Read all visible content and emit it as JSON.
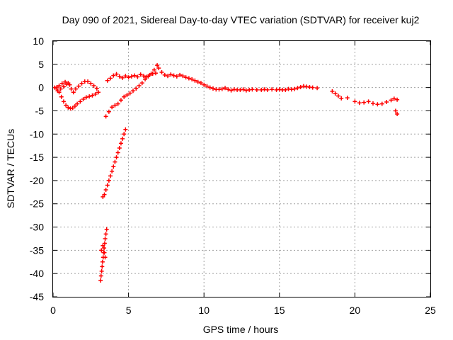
{
  "chart_data": {
    "type": "scatter",
    "title": "Day 090 of 2021, Sidereal Day-to-day VTEC variation (SDTVAR) for receiver kuj2",
    "xlabel": "GPS time / hours",
    "ylabel": "SDTVAR / TECUs",
    "xlim": [
      0,
      25
    ],
    "ylim": [
      -45,
      10
    ],
    "xticks": [
      0,
      5,
      10,
      15,
      20,
      25
    ],
    "yticks": [
      10,
      5,
      0,
      -5,
      -10,
      -15,
      -20,
      -25,
      -30,
      -35,
      -40,
      -45
    ],
    "grid": true,
    "marker": "plus",
    "color": "#ff0000",
    "series": [
      {
        "name": "loop",
        "points": [
          [
            0.1,
            0.0
          ],
          [
            0.25,
            -0.3
          ],
          [
            0.4,
            -1.0
          ],
          [
            0.55,
            -2.0
          ],
          [
            0.7,
            -3.0
          ],
          [
            0.85,
            -3.8
          ],
          [
            1.0,
            -4.3
          ],
          [
            1.15,
            -4.5
          ],
          [
            1.3,
            -4.4
          ],
          [
            1.45,
            -4.0
          ],
          [
            1.6,
            -3.5
          ],
          [
            1.8,
            -3.0
          ],
          [
            2.0,
            -2.5
          ],
          [
            2.2,
            -2.1
          ],
          [
            2.4,
            -1.9
          ],
          [
            2.6,
            -1.7
          ],
          [
            2.8,
            -1.4
          ],
          [
            3.0,
            -1.0
          ],
          [
            2.9,
            -0.2
          ],
          [
            2.7,
            0.4
          ],
          [
            2.5,
            0.9
          ],
          [
            2.3,
            1.3
          ],
          [
            2.1,
            1.3
          ],
          [
            1.9,
            0.9
          ],
          [
            1.7,
            0.3
          ],
          [
            1.5,
            -0.3
          ],
          [
            1.35,
            -1.0
          ],
          [
            1.2,
            -0.3
          ],
          [
            1.1,
            0.6
          ],
          [
            1.0,
            1.0
          ],
          [
            0.8,
            1.2
          ],
          [
            0.6,
            0.9
          ],
          [
            0.4,
            0.4
          ],
          [
            0.25,
            0.1
          ],
          [
            0.3,
            -0.7
          ],
          [
            0.5,
            -0.3
          ],
          [
            0.7,
            0.2
          ],
          [
            0.9,
            0.7
          ]
        ]
      },
      {
        "name": "descending-1",
        "points": [
          [
            3.55,
            -30.5
          ],
          [
            3.5,
            -31.5
          ],
          [
            3.45,
            -32.5
          ],
          [
            3.42,
            -33.5
          ],
          [
            3.38,
            -34.5
          ],
          [
            3.35,
            -35.5
          ],
          [
            3.32,
            -36.5
          ],
          [
            3.28,
            -37.5
          ],
          [
            3.25,
            -38.5
          ],
          [
            3.22,
            -39.5
          ],
          [
            3.18,
            -40.5
          ],
          [
            3.15,
            -41.5
          ],
          [
            3.2,
            -35.0
          ],
          [
            3.3,
            -34.0
          ],
          [
            3.4,
            -35.5
          ],
          [
            3.45,
            -36.5
          ]
        ]
      },
      {
        "name": "descending-2",
        "points": [
          [
            4.8,
            -9.0
          ],
          [
            4.7,
            -10.0
          ],
          [
            4.6,
            -11.0
          ],
          [
            4.5,
            -12.0
          ],
          [
            4.4,
            -13.0
          ],
          [
            4.3,
            -14.0
          ],
          [
            4.2,
            -15.0
          ],
          [
            4.1,
            -16.0
          ],
          [
            4.0,
            -17.0
          ],
          [
            3.9,
            -18.0
          ],
          [
            3.8,
            -19.0
          ],
          [
            3.7,
            -20.0
          ],
          [
            3.6,
            -21.0
          ],
          [
            3.5,
            -22.0
          ],
          [
            3.4,
            -23.0
          ],
          [
            3.3,
            -23.5
          ]
        ]
      },
      {
        "name": "rise",
        "points": [
          [
            3.5,
            -6.2
          ],
          [
            3.7,
            -5.2
          ],
          [
            3.9,
            -4.2
          ],
          [
            4.1,
            -3.8
          ],
          [
            4.3,
            -3.5
          ],
          [
            4.5,
            -2.7
          ],
          [
            4.7,
            -2.0
          ],
          [
            4.9,
            -1.6
          ],
          [
            5.1,
            -1.2
          ],
          [
            5.3,
            -0.7
          ],
          [
            5.5,
            -0.2
          ],
          [
            5.7,
            0.4
          ],
          [
            5.9,
            1.0
          ],
          [
            6.1,
            1.8
          ],
          [
            6.3,
            2.4
          ],
          [
            6.5,
            3.0
          ],
          [
            6.7,
            3.8
          ],
          [
            6.9,
            4.8
          ],
          [
            7.0,
            4.2
          ]
        ]
      },
      {
        "name": "main",
        "points": [
          [
            3.6,
            1.5
          ],
          [
            3.8,
            2.0
          ],
          [
            4.0,
            2.6
          ],
          [
            4.2,
            2.9
          ],
          [
            4.4,
            2.4
          ],
          [
            4.6,
            2.1
          ],
          [
            4.8,
            2.5
          ],
          [
            5.0,
            2.2
          ],
          [
            5.2,
            2.4
          ],
          [
            5.4,
            2.6
          ],
          [
            5.6,
            2.3
          ],
          [
            5.8,
            2.8
          ],
          [
            6.0,
            2.5
          ],
          [
            6.2,
            2.3
          ],
          [
            6.4,
            2.7
          ],
          [
            6.6,
            3.0
          ],
          [
            6.8,
            3.1
          ],
          [
            7.2,
            3.3
          ],
          [
            7.4,
            2.7
          ],
          [
            7.6,
            2.5
          ],
          [
            7.8,
            2.8
          ],
          [
            8.0,
            2.6
          ],
          [
            8.2,
            2.4
          ],
          [
            8.4,
            2.7
          ],
          [
            8.6,
            2.5
          ],
          [
            8.8,
            2.2
          ],
          [
            9.0,
            2.0
          ],
          [
            9.2,
            1.8
          ],
          [
            9.4,
            1.5
          ],
          [
            9.6,
            1.2
          ],
          [
            9.8,
            1.0
          ],
          [
            10.0,
            0.6
          ],
          [
            10.2,
            0.3
          ],
          [
            10.4,
            0.0
          ],
          [
            10.6,
            -0.2
          ],
          [
            10.8,
            -0.4
          ],
          [
            11.0,
            -0.4
          ],
          [
            11.2,
            -0.3
          ],
          [
            11.4,
            -0.1
          ],
          [
            11.6,
            -0.4
          ],
          [
            11.8,
            -0.6
          ],
          [
            12.0,
            -0.4
          ],
          [
            12.2,
            -0.5
          ],
          [
            12.4,
            -0.5
          ],
          [
            12.6,
            -0.4
          ],
          [
            12.8,
            -0.6
          ],
          [
            13.0,
            -0.5
          ],
          [
            13.2,
            -0.4
          ],
          [
            13.5,
            -0.5
          ],
          [
            13.8,
            -0.5
          ],
          [
            14.0,
            -0.4
          ],
          [
            14.2,
            -0.5
          ],
          [
            14.5,
            -0.4
          ],
          [
            14.8,
            -0.5
          ],
          [
            15.0,
            -0.4
          ],
          [
            15.2,
            -0.5
          ],
          [
            15.4,
            -0.5
          ],
          [
            15.6,
            -0.3
          ],
          [
            15.8,
            -0.4
          ],
          [
            16.0,
            -0.3
          ],
          [
            16.2,
            -0.1
          ],
          [
            16.4,
            0.1
          ],
          [
            16.6,
            0.3
          ],
          [
            16.8,
            0.2
          ],
          [
            17.0,
            0.1
          ],
          [
            17.2,
            0.0
          ],
          [
            17.5,
            -0.1
          ]
        ]
      },
      {
        "name": "tail",
        "points": [
          [
            18.5,
            -0.8
          ],
          [
            18.7,
            -1.3
          ],
          [
            18.9,
            -1.8
          ],
          [
            19.1,
            -2.3
          ],
          [
            19.5,
            -2.2
          ],
          [
            20.0,
            -3.0
          ],
          [
            20.3,
            -3.3
          ],
          [
            20.6,
            -3.2
          ],
          [
            20.9,
            -3.0
          ],
          [
            21.2,
            -3.4
          ],
          [
            21.5,
            -3.6
          ],
          [
            21.8,
            -3.5
          ],
          [
            22.1,
            -3.1
          ],
          [
            22.4,
            -2.7
          ],
          [
            22.6,
            -2.4
          ],
          [
            22.8,
            -2.6
          ],
          [
            22.7,
            -5.0
          ],
          [
            22.8,
            -5.7
          ]
        ]
      }
    ]
  }
}
